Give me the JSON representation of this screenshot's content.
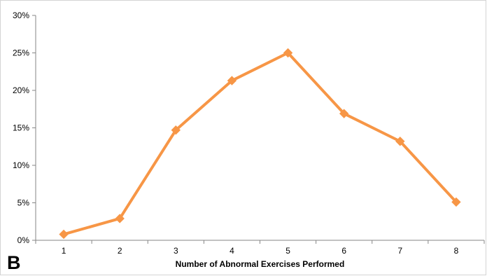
{
  "panel_label": "B",
  "chart_data": {
    "type": "line",
    "x": [
      1,
      2,
      3,
      4,
      5,
      6,
      7,
      8
    ],
    "x_tick_labels": [
      "1",
      "2",
      "3",
      "4",
      "5",
      "6",
      "7",
      "8"
    ],
    "series": [
      {
        "values": [
          0.8,
          2.9,
          14.7,
          21.3,
          25.0,
          16.9,
          13.2,
          5.1
        ],
        "color": "#f79646",
        "marker": "diamond"
      }
    ],
    "y_tick_labels": [
      "0%",
      "5%",
      "10%",
      "15%",
      "20%",
      "25%",
      "30%"
    ],
    "y_ticks": [
      0,
      5,
      10,
      15,
      20,
      25,
      30
    ],
    "ylim": [
      0,
      30
    ],
    "xlabel": "Number of Abnormal Exercises Performed",
    "ylabel": "",
    "title": "",
    "grid": false,
    "legend": "none"
  }
}
